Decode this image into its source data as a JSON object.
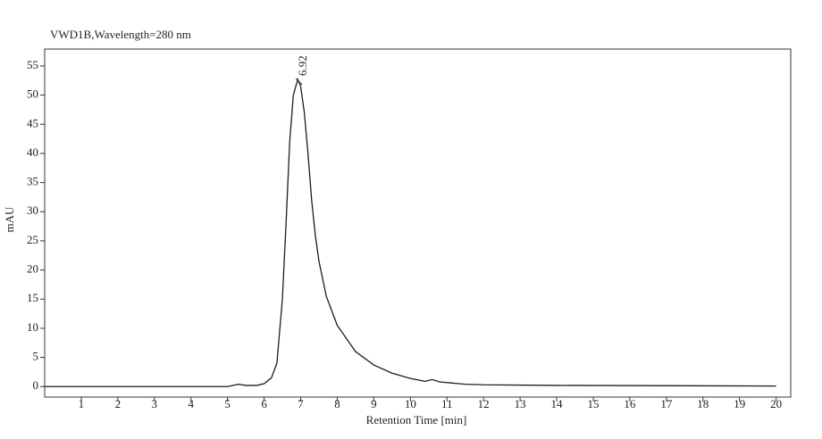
{
  "chart_data": {
    "type": "line",
    "title": "VWD1B,Wavelength=280 nm",
    "x_label": "Retention Time [min]",
    "y_label": "mAU",
    "annotations": [
      {
        "text": "6.92"
      }
    ],
    "color": "#1a1a2e",
    "x": [
      0,
      5,
      5.3,
      5.5,
      5.8,
      6.0,
      6.2,
      6.35,
      6.5,
      6.6,
      6.7,
      6.8,
      6.92,
      7.0,
      7.1,
      7.2,
      7.3,
      7.4,
      7.5,
      7.7,
      8.0,
      8.5,
      9.0,
      9.5,
      10.0,
      10.4,
      10.6,
      10.8,
      11.5,
      12,
      14,
      20
    ],
    "values": [
      0,
      0,
      0.4,
      0.2,
      0.2,
      0.5,
      1.5,
      4,
      15,
      28,
      42,
      50,
      52.7,
      51.5,
      47,
      40,
      32,
      26,
      21.5,
      15.5,
      10.5,
      6,
      3.7,
      2.3,
      1.4,
      0.9,
      1.2,
      0.8,
      0.4,
      0.3,
      0.2,
      0.1
    ],
    "xlim": [
      0,
      20.4
    ],
    "ylim": [
      -1.8,
      57.9
    ],
    "xticks": [
      1,
      2,
      3,
      4,
      5,
      6,
      7,
      8,
      9,
      10,
      11,
      12,
      13,
      14,
      15,
      16,
      17,
      18,
      19,
      20
    ],
    "yticks": [
      0,
      5,
      10,
      15,
      20,
      25,
      30,
      35,
      40,
      45,
      50,
      55
    ]
  }
}
